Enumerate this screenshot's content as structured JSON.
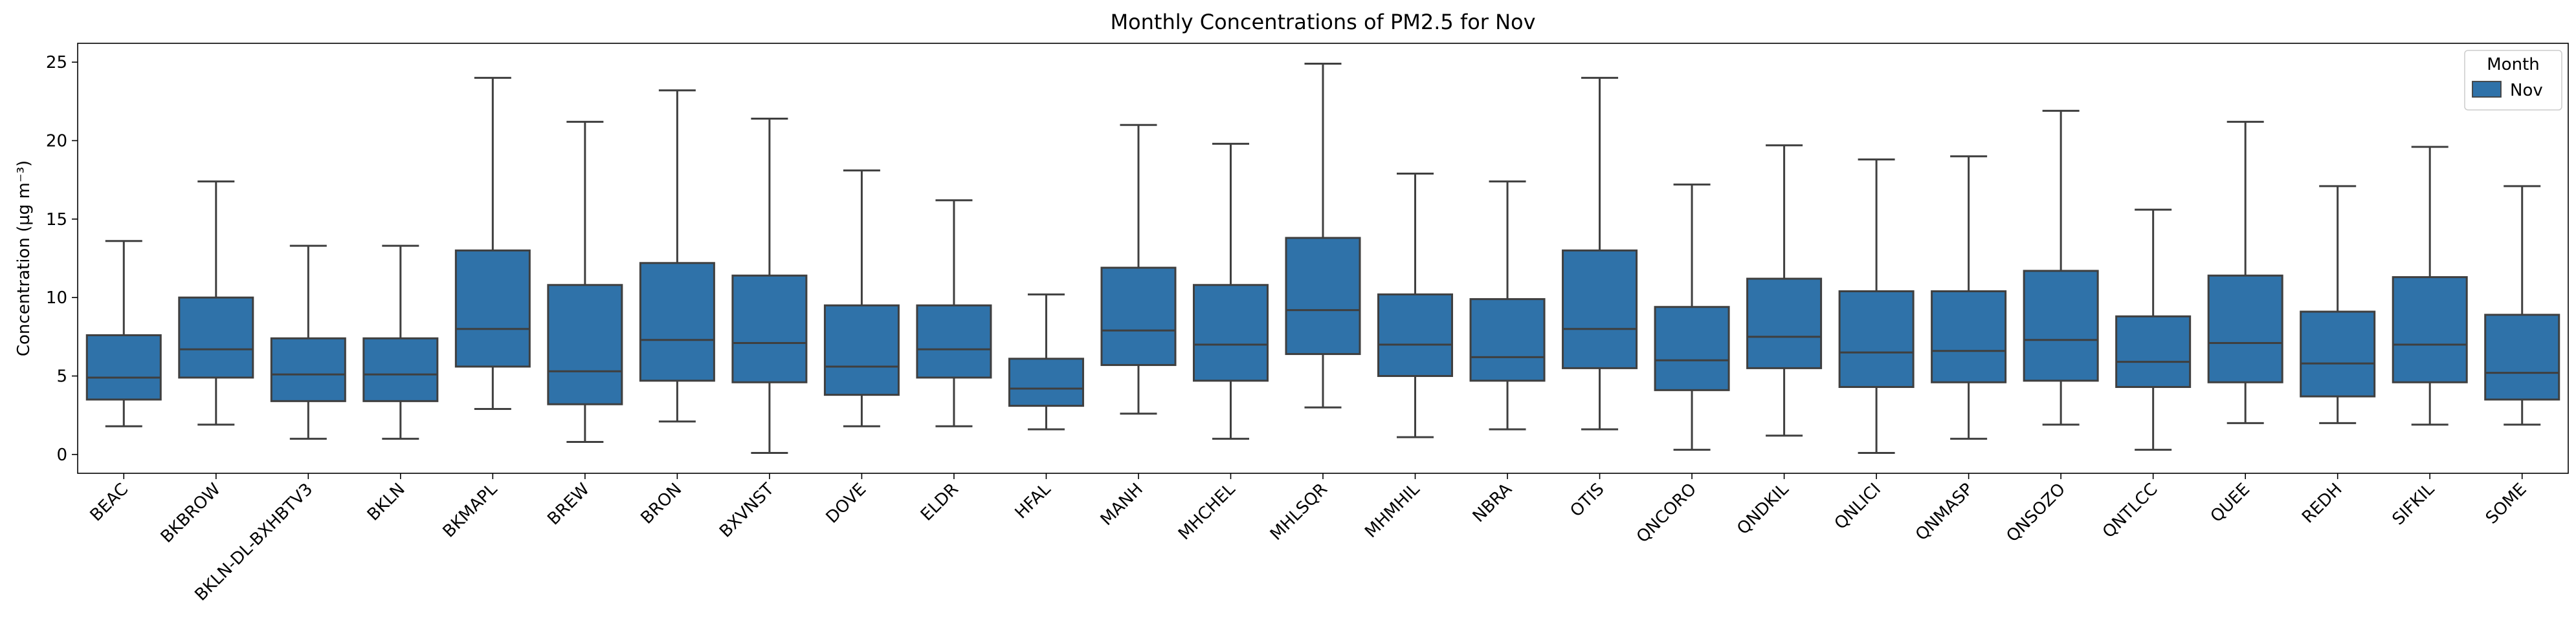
{
  "chart_data": {
    "type": "box",
    "title": "Monthly Concentrations of PM2.5 for Nov",
    "xlabel": "",
    "ylabel": "Concentration (µg m⁻³)",
    "ylim": [
      -1.2,
      26.2
    ],
    "yticks": [
      0,
      5,
      10,
      15,
      20,
      25
    ],
    "grid": false,
    "legend": {
      "title": "Month",
      "position": "top-right",
      "entries": [
        "Nov"
      ]
    },
    "series": [
      {
        "name": "Nov",
        "color": "#2f72a9",
        "categories": [
          "BEAC",
          "BKBROW",
          "BKLN-DL-BXHBTV3",
          "BKLN",
          "BKMAPL",
          "BREW",
          "BRON",
          "BXVNST",
          "DOVE",
          "ELDR",
          "HFAL",
          "MANH",
          "MHCHEL",
          "MHLSQR",
          "MHMHIL",
          "NBRA",
          "OTIS",
          "QNCORO",
          "QNDKIL",
          "QNLICI",
          "QNMASP",
          "QNSOZO",
          "QNTLCC",
          "QUEE",
          "REDH",
          "SIFKIL",
          "SOME"
        ],
        "boxes": [
          {
            "whislo": 1.8,
            "q1": 3.5,
            "med": 4.9,
            "q3": 7.6,
            "whishi": 13.6
          },
          {
            "whislo": 1.9,
            "q1": 4.9,
            "med": 6.7,
            "q3": 10.0,
            "whishi": 17.4
          },
          {
            "whislo": 1.0,
            "q1": 3.4,
            "med": 5.1,
            "q3": 7.4,
            "whishi": 13.3
          },
          {
            "whislo": 1.0,
            "q1": 3.4,
            "med": 5.1,
            "q3": 7.4,
            "whishi": 13.3
          },
          {
            "whislo": 2.9,
            "q1": 5.6,
            "med": 8.0,
            "q3": 13.0,
            "whishi": 24.0
          },
          {
            "whislo": 0.8,
            "q1": 3.2,
            "med": 5.3,
            "q3": 10.8,
            "whishi": 21.2
          },
          {
            "whislo": 2.1,
            "q1": 4.7,
            "med": 7.3,
            "q3": 12.2,
            "whishi": 23.2
          },
          {
            "whislo": 0.1,
            "q1": 4.6,
            "med": 7.1,
            "q3": 11.4,
            "whishi": 21.4
          },
          {
            "whislo": 1.8,
            "q1": 3.8,
            "med": 5.6,
            "q3": 9.5,
            "whishi": 18.1
          },
          {
            "whislo": 1.8,
            "q1": 4.9,
            "med": 6.7,
            "q3": 9.5,
            "whishi": 16.2
          },
          {
            "whislo": 1.6,
            "q1": 3.1,
            "med": 4.2,
            "q3": 6.1,
            "whishi": 10.2
          },
          {
            "whislo": 2.6,
            "q1": 5.7,
            "med": 7.9,
            "q3": 11.9,
            "whishi": 21.0
          },
          {
            "whislo": 1.0,
            "q1": 4.7,
            "med": 7.0,
            "q3": 10.8,
            "whishi": 19.8
          },
          {
            "whislo": 3.0,
            "q1": 6.4,
            "med": 9.2,
            "q3": 13.8,
            "whishi": 24.9
          },
          {
            "whislo": 1.1,
            "q1": 5.0,
            "med": 7.0,
            "q3": 10.2,
            "whishi": 17.9
          },
          {
            "whislo": 1.6,
            "q1": 4.7,
            "med": 6.2,
            "q3": 9.9,
            "whishi": 17.4
          },
          {
            "whislo": 1.6,
            "q1": 5.5,
            "med": 8.0,
            "q3": 13.0,
            "whishi": 24.0
          },
          {
            "whislo": 0.3,
            "q1": 4.1,
            "med": 6.0,
            "q3": 9.4,
            "whishi": 17.2
          },
          {
            "whislo": 1.2,
            "q1": 5.5,
            "med": 7.5,
            "q3": 11.2,
            "whishi": 19.7
          },
          {
            "whislo": 0.1,
            "q1": 4.3,
            "med": 6.5,
            "q3": 10.4,
            "whishi": 18.8
          },
          {
            "whislo": 1.0,
            "q1": 4.6,
            "med": 6.6,
            "q3": 10.4,
            "whishi": 19.0
          },
          {
            "whislo": 1.9,
            "q1": 4.7,
            "med": 7.3,
            "q3": 11.7,
            "whishi": 21.9
          },
          {
            "whislo": 0.3,
            "q1": 4.3,
            "med": 5.9,
            "q3": 8.8,
            "whishi": 15.6
          },
          {
            "whislo": 2.0,
            "q1": 4.6,
            "med": 7.1,
            "q3": 11.4,
            "whishi": 21.2
          },
          {
            "whislo": 2.0,
            "q1": 3.7,
            "med": 5.8,
            "q3": 9.1,
            "whishi": 17.1
          },
          {
            "whislo": 1.9,
            "q1": 4.6,
            "med": 7.0,
            "q3": 11.3,
            "whishi": 19.6
          },
          {
            "whislo": 1.9,
            "q1": 3.5,
            "med": 5.2,
            "q3": 8.9,
            "whishi": 17.1
          }
        ]
      }
    ]
  }
}
